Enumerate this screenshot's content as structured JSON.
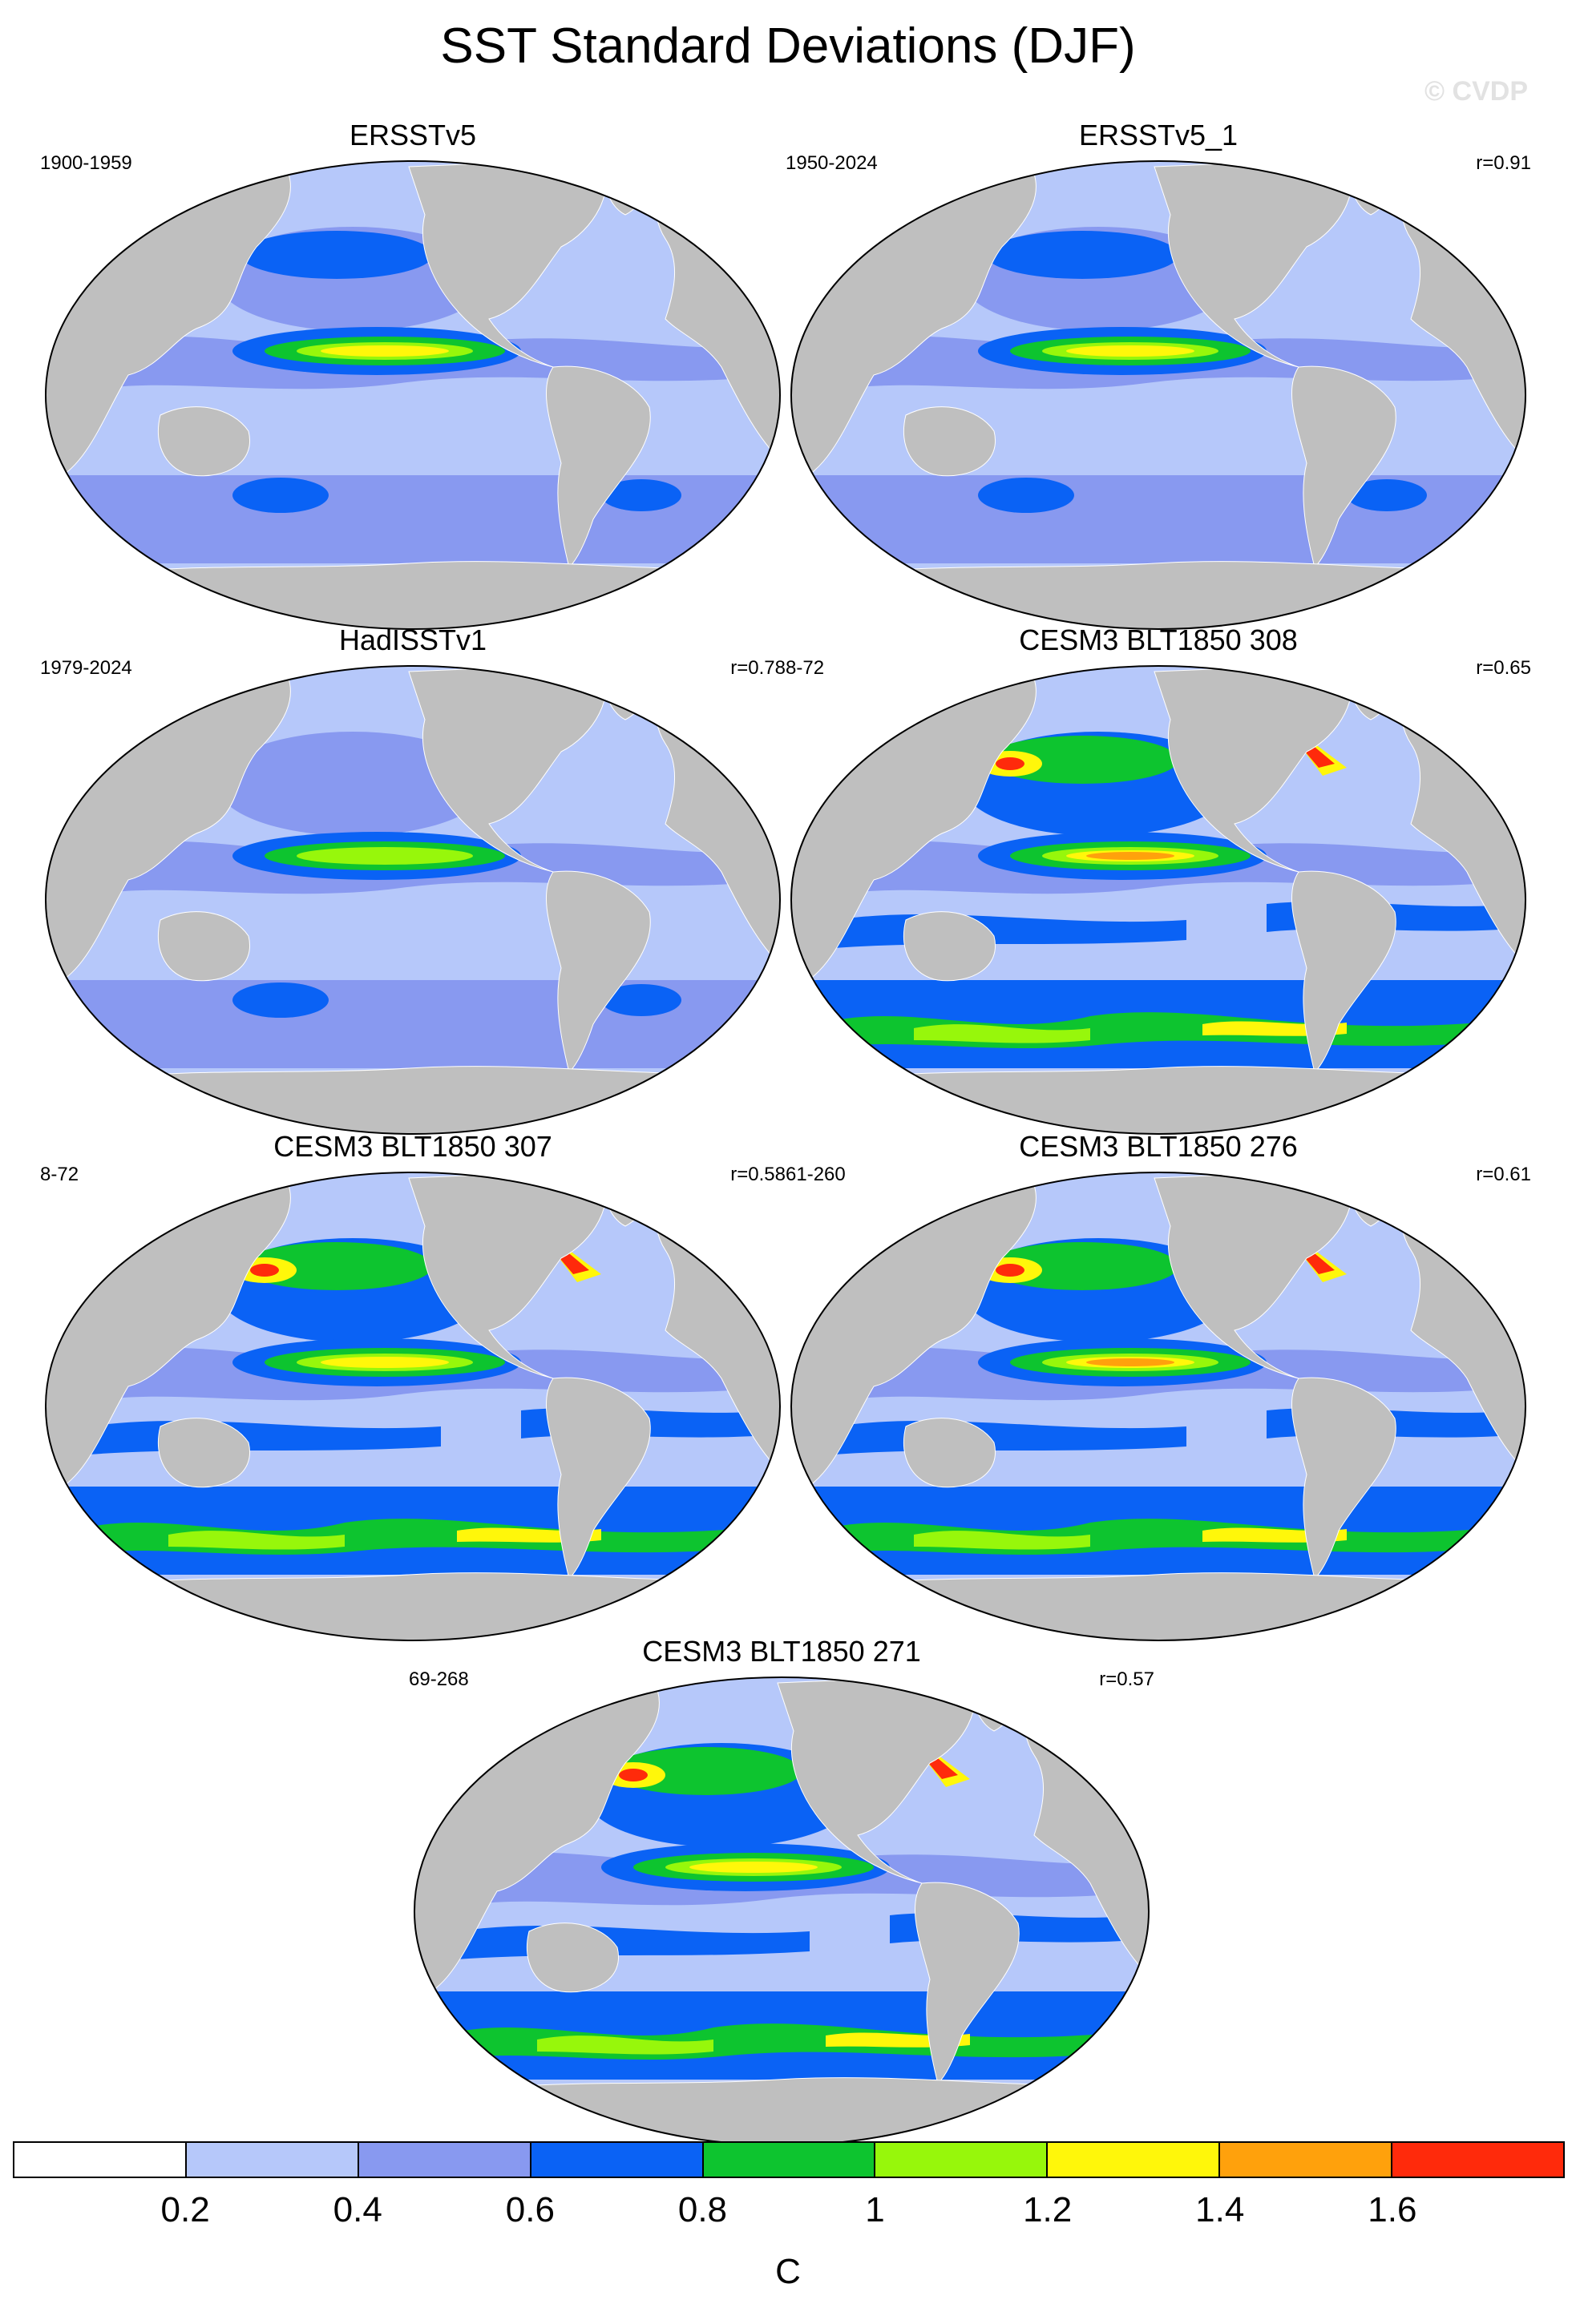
{
  "figure_title": "SST Standard Deviations (DJF)",
  "watermark": "© CVDP",
  "colors": {
    "land": "#bfbfbf",
    "ocean_low": "#b6c8fa",
    "ocean_mid": "#8899f0",
    "ocean_high": "#0a62f5",
    "green": "#0dc42f",
    "lime": "#97f70b",
    "yellow": "#fff70a",
    "orange": "#ffa10c",
    "red": "#ff2a0b"
  },
  "panels": [
    {
      "title": "ERSSTv5",
      "period": "1900-1959",
      "corr": "",
      "intensity": 1
    },
    {
      "title": "ERSSTv5_1",
      "period": "1950-2024",
      "corr": "r=0.91",
      "intensity": 1
    },
    {
      "title": "HadISSTv1",
      "period": "1979-2024",
      "corr": "r=0.78",
      "intensity": 0
    },
    {
      "title": "CESM3 BLT1850 308",
      "period": "8-72",
      "corr": "r=0.65",
      "intensity": 3
    },
    {
      "title": "CESM3 BLT1850 307",
      "period": "8-72",
      "corr": "r=0.58",
      "intensity": 2
    },
    {
      "title": "CESM3 BLT1850 276",
      "period": "61-260",
      "corr": "r=0.61",
      "intensity": 3
    },
    {
      "title": "CESM3 BLT1850 271",
      "period": "69-268",
      "corr": "r=0.57",
      "intensity": 2
    }
  ],
  "colorbar": {
    "colors": [
      "#ffffff",
      "#b6c8fa",
      "#8899f0",
      "#0a62f5",
      "#0dc42f",
      "#97f70b",
      "#fff70a",
      "#ffa10c",
      "#ff2a0b"
    ],
    "labels": [
      "0.2",
      "0.4",
      "0.6",
      "0.8",
      "1",
      "1.2",
      "1.4",
      "1.6"
    ],
    "unit": "C"
  }
}
